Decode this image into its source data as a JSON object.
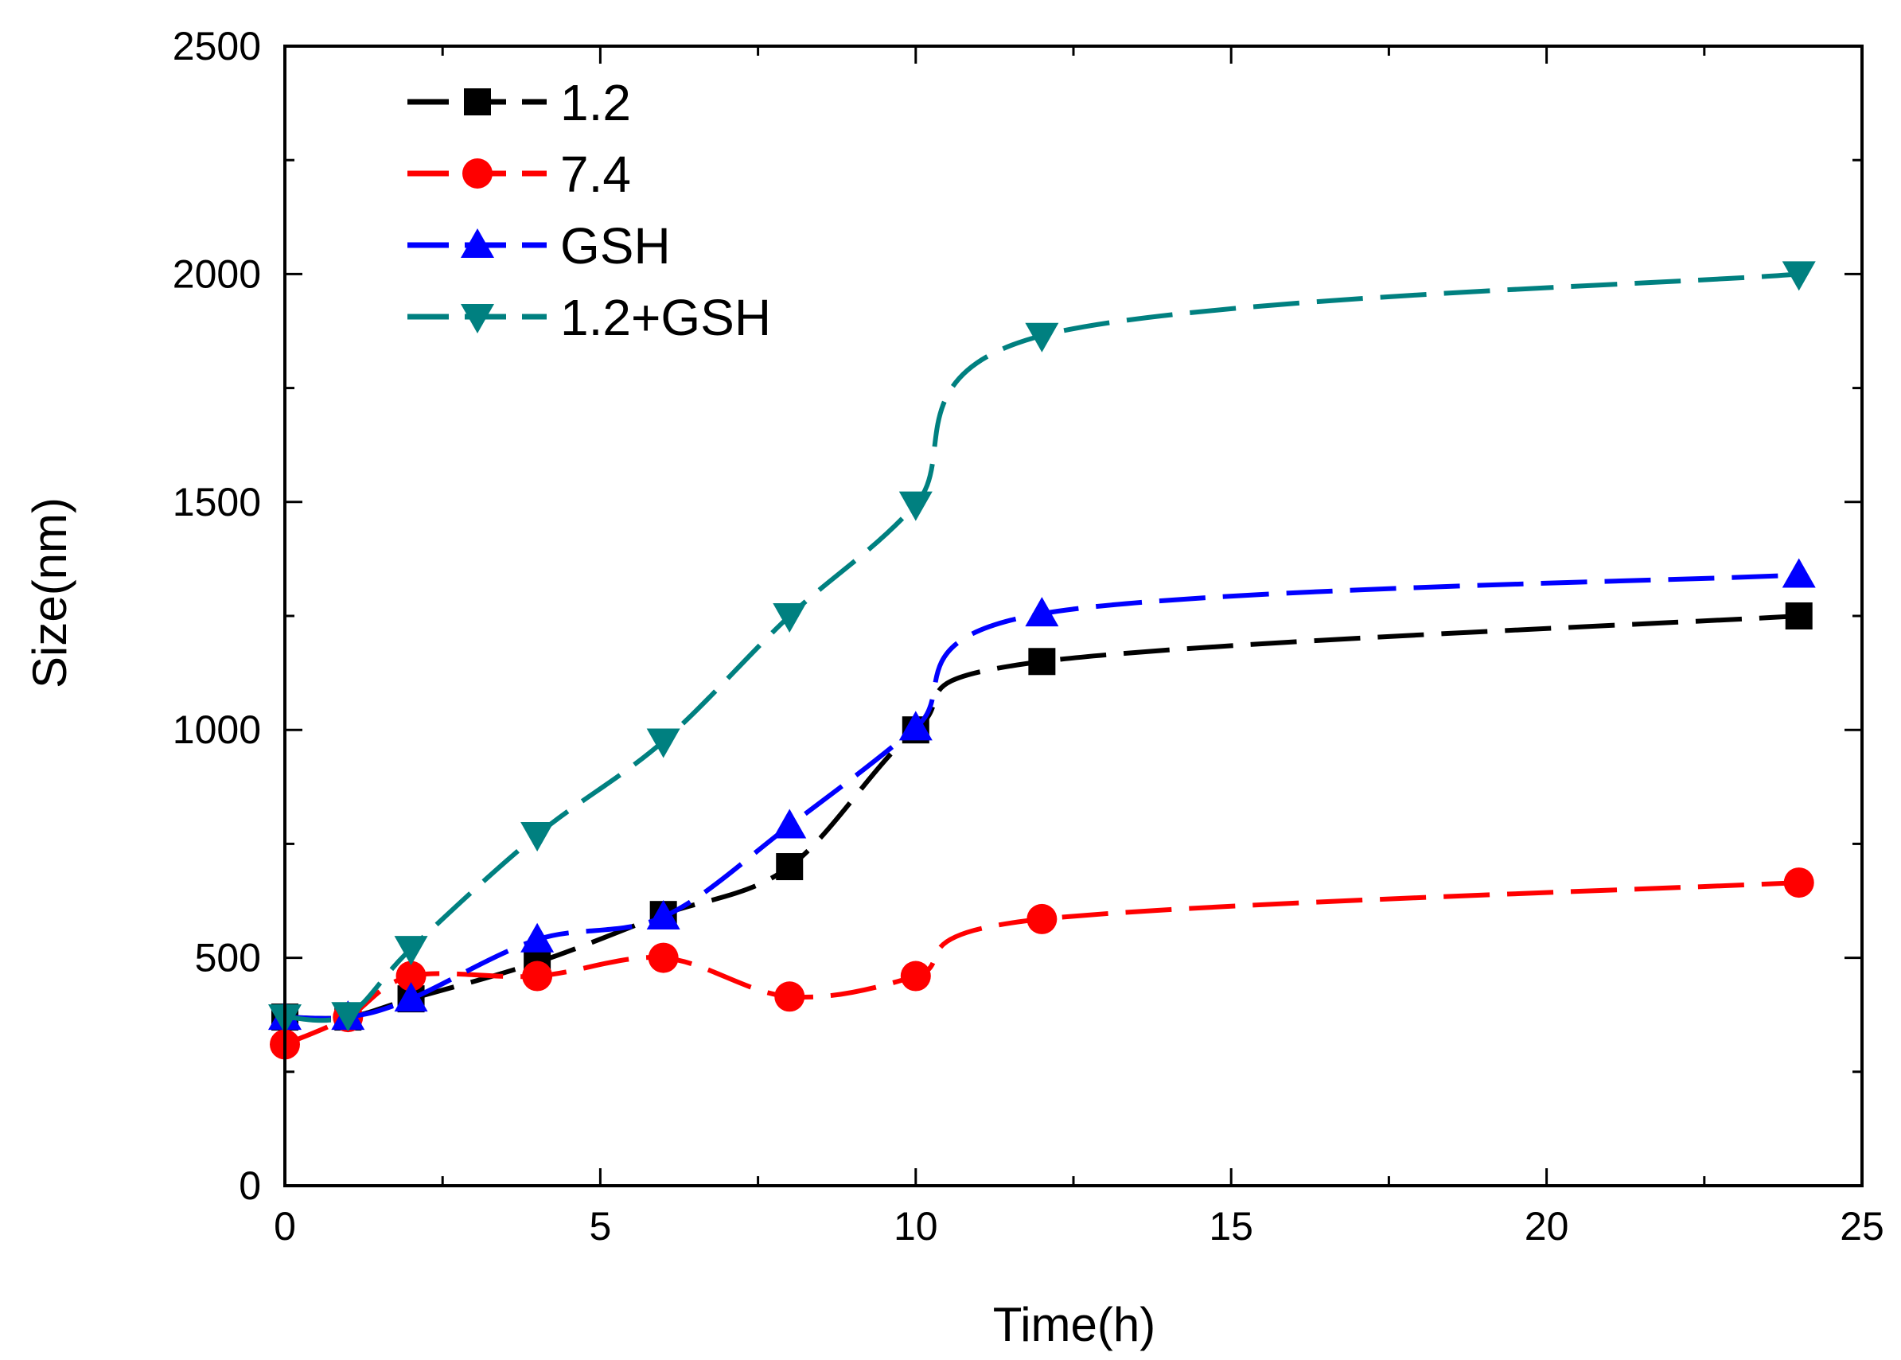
{
  "chart_data": {
    "type": "line",
    "title": "",
    "xlabel": "Time(h)",
    "ylabel": "Size(nm)",
    "xlim": [
      0,
      25
    ],
    "ylim": [
      0,
      2500
    ],
    "xticks": [
      0,
      5,
      10,
      15,
      20,
      25
    ],
    "yticks": [
      0,
      500,
      1000,
      1500,
      2000,
      2500
    ],
    "xtick_labels": [
      "0",
      "5",
      "10",
      "15",
      "20",
      "25"
    ],
    "ytick_labels": [
      "0",
      "500",
      "1000",
      "1500",
      "2000",
      "2500"
    ],
    "grid": false,
    "legend_position": "top-left",
    "x": [
      0,
      1,
      2,
      4,
      6,
      8,
      10,
      12,
      24
    ],
    "series": [
      {
        "name": "1.2",
        "marker": "square",
        "color": "#000000",
        "values": [
          370,
          370,
          410,
          490,
          595,
          700,
          1000,
          1150,
          1250
        ]
      },
      {
        "name": "7.4",
        "marker": "circle",
        "color": "#ff0000",
        "values": [
          310,
          370,
          460,
          460,
          500,
          415,
          460,
          585,
          665
        ]
      },
      {
        "name": "GSH",
        "marker": "triangle-up",
        "color": "#0000ff",
        "values": [
          370,
          370,
          410,
          540,
          590,
          790,
          1005,
          1255,
          1340
        ]
      },
      {
        "name": "1.2+GSH",
        "marker": "triangle-down",
        "color": "#008080",
        "values": [
          370,
          375,
          520,
          770,
          975,
          1250,
          1495,
          1865,
          2000
        ]
      }
    ]
  }
}
